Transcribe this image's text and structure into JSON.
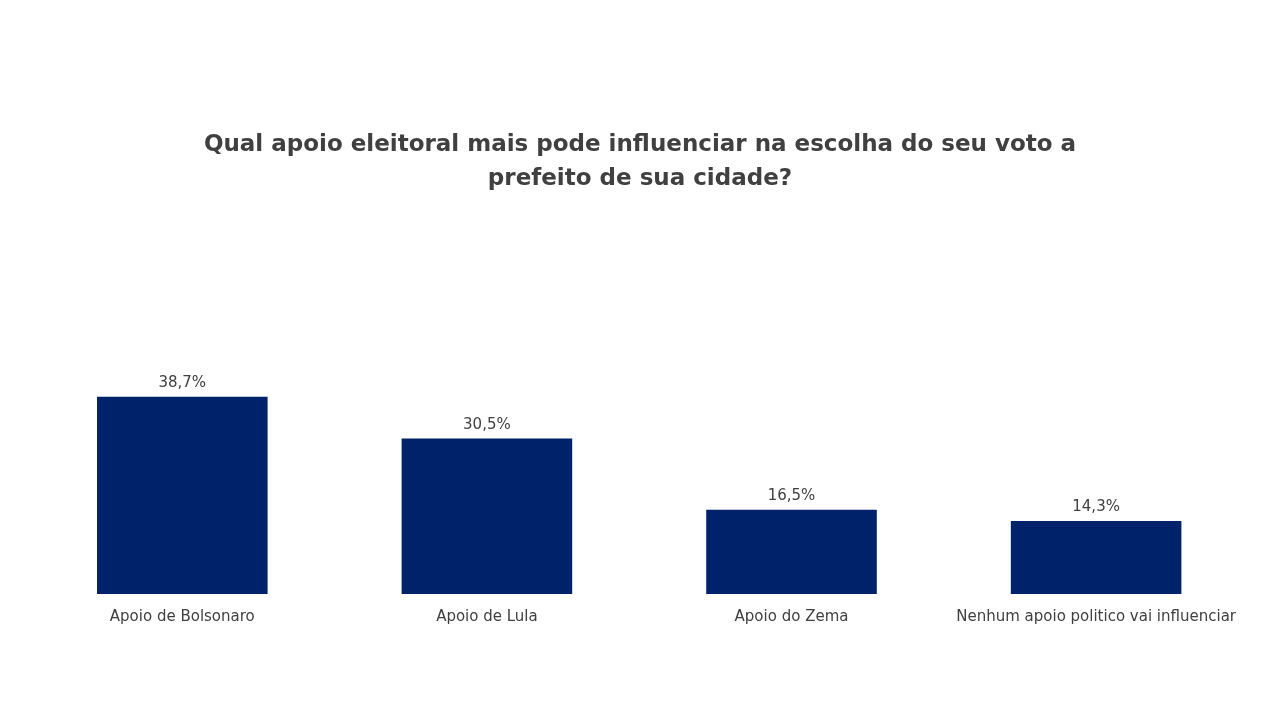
{
  "chart_data": {
    "type": "bar",
    "title": "Qual apoio eleitoral mais pode influenciar na escolha do seu voto a prefeito de sua cidade?",
    "categories": [
      "Apoio de Bolsonaro",
      "Apoio de Lula",
      "Apoio do Zema",
      "Nenhum apoio politico vai influenciar"
    ],
    "values": [
      38.7,
      30.5,
      16.5,
      14.3
    ],
    "value_labels": [
      "38,7%",
      "30,5%",
      "16,5%",
      "14,3%"
    ],
    "color": "#00226b",
    "grid": false,
    "legend": false,
    "tick_labels": "x"
  }
}
